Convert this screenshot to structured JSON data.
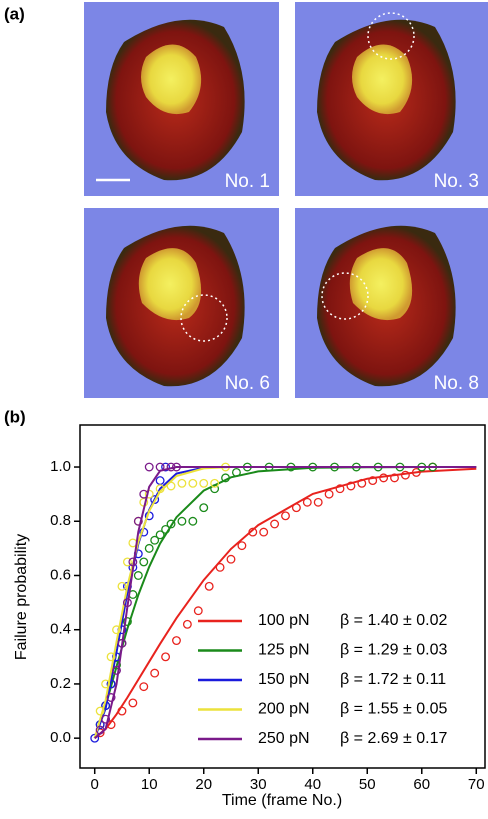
{
  "panel_a": {
    "label": "(a)",
    "images": [
      {
        "label": "No. 1"
      },
      {
        "label": "No. 3"
      },
      {
        "label": "No. 6"
      },
      {
        "label": "No. 8"
      }
    ]
  },
  "chart_data": {
    "type": "scatter-fit",
    "panel_label": "(b)",
    "x_label": "Time (frame No.)",
    "y_label": "Failure probability",
    "xlim": [
      -2.7,
      71.6
    ],
    "ylim": [
      -0.11,
      1.155
    ],
    "xticks": [
      0,
      10,
      20,
      30,
      40,
      50,
      60,
      70
    ],
    "yticks": [
      {
        "value": 0,
        "label": "0.0"
      },
      0.2,
      0.4,
      0.6,
      0.8,
      {
        "value": 1,
        "label": "1.0"
      }
    ],
    "legend": "lower right",
    "fit_x": [
      0,
      2,
      4,
      6,
      8,
      10,
      12,
      15,
      20,
      25,
      30,
      40,
      50,
      60,
      70
    ],
    "series": [
      {
        "name": "100 pN",
        "annotation": "β = 1.40 ± 0.02",
        "color": "#e8231e",
        "x": [
          1,
          3,
          5,
          7,
          9,
          11,
          13,
          15,
          17,
          19,
          21,
          23,
          25,
          27,
          29,
          31,
          33,
          35,
          37,
          39,
          41,
          43,
          45,
          47,
          49,
          51,
          53,
          55,
          57,
          59,
          62
        ],
        "values": [
          0.02,
          0.05,
          0.1,
          0.13,
          0.19,
          0.24,
          0.3,
          0.36,
          0.42,
          0.47,
          0.56,
          0.63,
          0.66,
          0.71,
          0.76,
          0.76,
          0.79,
          0.82,
          0.85,
          0.87,
          0.87,
          0.9,
          0.92,
          0.93,
          0.94,
          0.95,
          0.96,
          0.96,
          0.97,
          0.98,
          1.0
        ],
        "fit_values": [
          0,
          0.034,
          0.088,
          0.15,
          0.216,
          0.282,
          0.348,
          0.443,
          0.583,
          0.698,
          0.786,
          0.901,
          0.957,
          0.983,
          0.994
        ]
      },
      {
        "name": "125 pN",
        "annotation": "β = 1.29 ± 0.03",
        "color": "#1a8a1a",
        "x": [
          1,
          2,
          3,
          4,
          5,
          6,
          7,
          8,
          9,
          10,
          11,
          12,
          13,
          14,
          16,
          18,
          20,
          22,
          24,
          26,
          28,
          32,
          36,
          40,
          44,
          48,
          52,
          56,
          60,
          62
        ],
        "values": [
          0.05,
          0.12,
          0.2,
          0.27,
          0.35,
          0.43,
          0.53,
          0.6,
          0.65,
          0.7,
          0.73,
          0.75,
          0.77,
          0.79,
          0.8,
          0.8,
          0.85,
          0.92,
          0.96,
          0.98,
          1.0,
          1.0,
          1.0,
          1.0,
          1.0,
          1.0,
          1.0,
          1.0,
          1.0,
          1.0
        ],
        "fit_values": [
          0,
          0.118,
          0.264,
          0.404,
          0.528,
          0.632,
          0.718,
          0.815,
          0.913,
          0.962,
          0.984,
          0.997,
          0.999,
          1.0,
          1.0
        ]
      },
      {
        "name": "150 pN",
        "annotation": "β = 1.72 ± 0.11",
        "color": "#1a1adc",
        "x": [
          0,
          1,
          2,
          3,
          4,
          5,
          6,
          7,
          8,
          9,
          10,
          11,
          12,
          13
        ],
        "values": [
          0.0,
          0.05,
          0.12,
          0.2,
          0.3,
          0.4,
          0.56,
          0.63,
          0.68,
          0.76,
          0.82,
          0.88,
          0.95,
          1.0
        ],
        "fit_values": [
          0,
          0.109,
          0.317,
          0.536,
          0.716,
          0.842,
          0.92,
          0.976,
          0.998,
          1.0,
          1.0,
          1.0,
          1.0,
          1.0,
          1.0
        ]
      },
      {
        "name": "200 pN",
        "annotation": "β = 1.55 ± 0.05",
        "color": "#ece23c",
        "x": [
          1,
          2,
          3,
          4,
          5,
          6,
          7,
          8,
          9,
          10,
          12,
          14,
          16,
          18,
          20,
          22,
          24
        ],
        "values": [
          0.1,
          0.2,
          0.3,
          0.4,
          0.56,
          0.65,
          0.72,
          0.8,
          0.87,
          0.9,
          0.92,
          0.93,
          0.94,
          0.94,
          0.94,
          0.94,
          1.0
        ],
        "fit_values": [
          0,
          0.139,
          0.355,
          0.561,
          0.724,
          0.838,
          0.91,
          0.967,
          0.995,
          1.0,
          1.0,
          1.0,
          1.0,
          1.0,
          1.0
        ]
      },
      {
        "name": "250 pN",
        "annotation": "β = 2.69 ± 0.17",
        "color": "#7a1a8a",
        "x": [
          1,
          2,
          3,
          4,
          5,
          6,
          7,
          8,
          9,
          10,
          12,
          14,
          15
        ],
        "values": [
          0.03,
          0.07,
          0.15,
          0.25,
          0.35,
          0.5,
          0.65,
          0.8,
          0.9,
          1.0,
          1.0,
          1.0,
          1.0
        ],
        "fit_values": [
          0,
          0.034,
          0.199,
          0.484,
          0.761,
          0.927,
          0.986,
          1.0,
          1.0,
          1.0,
          1.0,
          1.0,
          1.0,
          1.0,
          1.0
        ]
      }
    ]
  }
}
